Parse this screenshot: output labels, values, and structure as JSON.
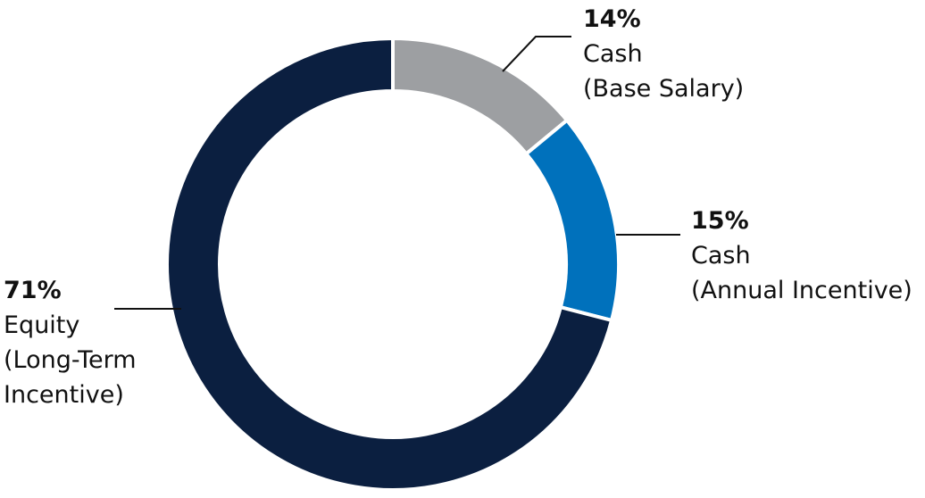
{
  "chart_data": {
    "type": "donut",
    "title": "",
    "slices": [
      {
        "pct_label": "14%",
        "value": 14,
        "line1": "Cash",
        "line2": "(Base Salary)",
        "line3": "",
        "color": "#9d9fa2"
      },
      {
        "pct_label": "15%",
        "value": 15,
        "line1": "Cash",
        "line2": "(Annual Incentive)",
        "line3": "",
        "color": "#0071bc"
      },
      {
        "pct_label": "71%",
        "value": 71,
        "line1": "Equity",
        "line2": "(Long-Term",
        "line3": "Incentive)",
        "color": "#0b1f40"
      }
    ]
  }
}
